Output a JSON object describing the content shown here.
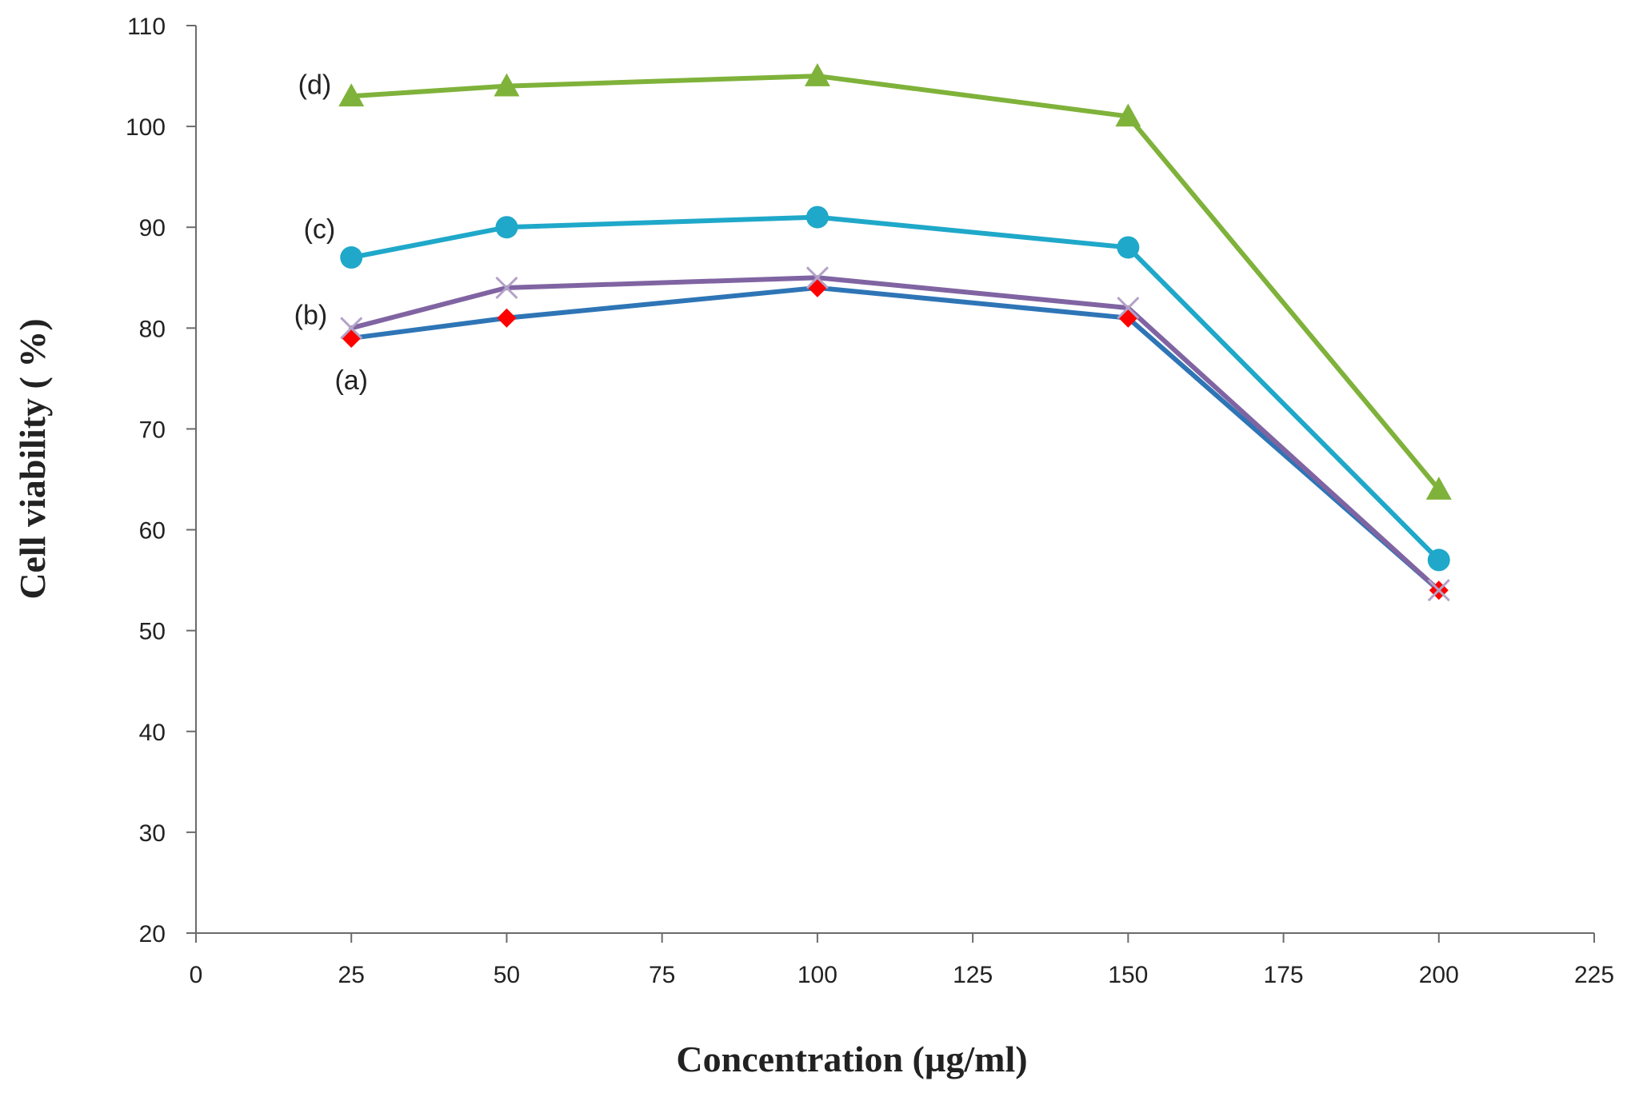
{
  "chart_data": {
    "type": "line",
    "title": "",
    "xlabel": "Concentration (µg/ml)",
    "ylabel": "Cell viability ( %)",
    "xlim": [
      0,
      225
    ],
    "ylim": [
      20,
      110
    ],
    "xticks": [
      0,
      25,
      50,
      75,
      100,
      125,
      150,
      175,
      200,
      225
    ],
    "yticks": [
      20,
      30,
      40,
      50,
      60,
      70,
      80,
      90,
      100,
      110
    ],
    "grid": false,
    "x": [
      25,
      50,
      100,
      150,
      200
    ],
    "series": [
      {
        "name": "(a)",
        "values": [
          79,
          81,
          84,
          81,
          54
        ],
        "color": "#2E75B6",
        "marker": "diamond",
        "marker_color": "#FF0000"
      },
      {
        "name": "(b)",
        "values": [
          80,
          84,
          85,
          82,
          54
        ],
        "color": "#8064A2",
        "marker": "x",
        "marker_color": "#B3A2C7"
      },
      {
        "name": "(c)",
        "values": [
          87,
          90,
          91,
          88,
          57
        ],
        "color": "#1FA8C9",
        "marker": "circle",
        "marker_color": "#1FA8C9"
      },
      {
        "name": "(d)",
        "values": [
          103,
          104,
          105,
          101,
          64
        ],
        "color": "#7FB23A",
        "marker": "triangle",
        "marker_color": "#7FB23A"
      }
    ]
  }
}
